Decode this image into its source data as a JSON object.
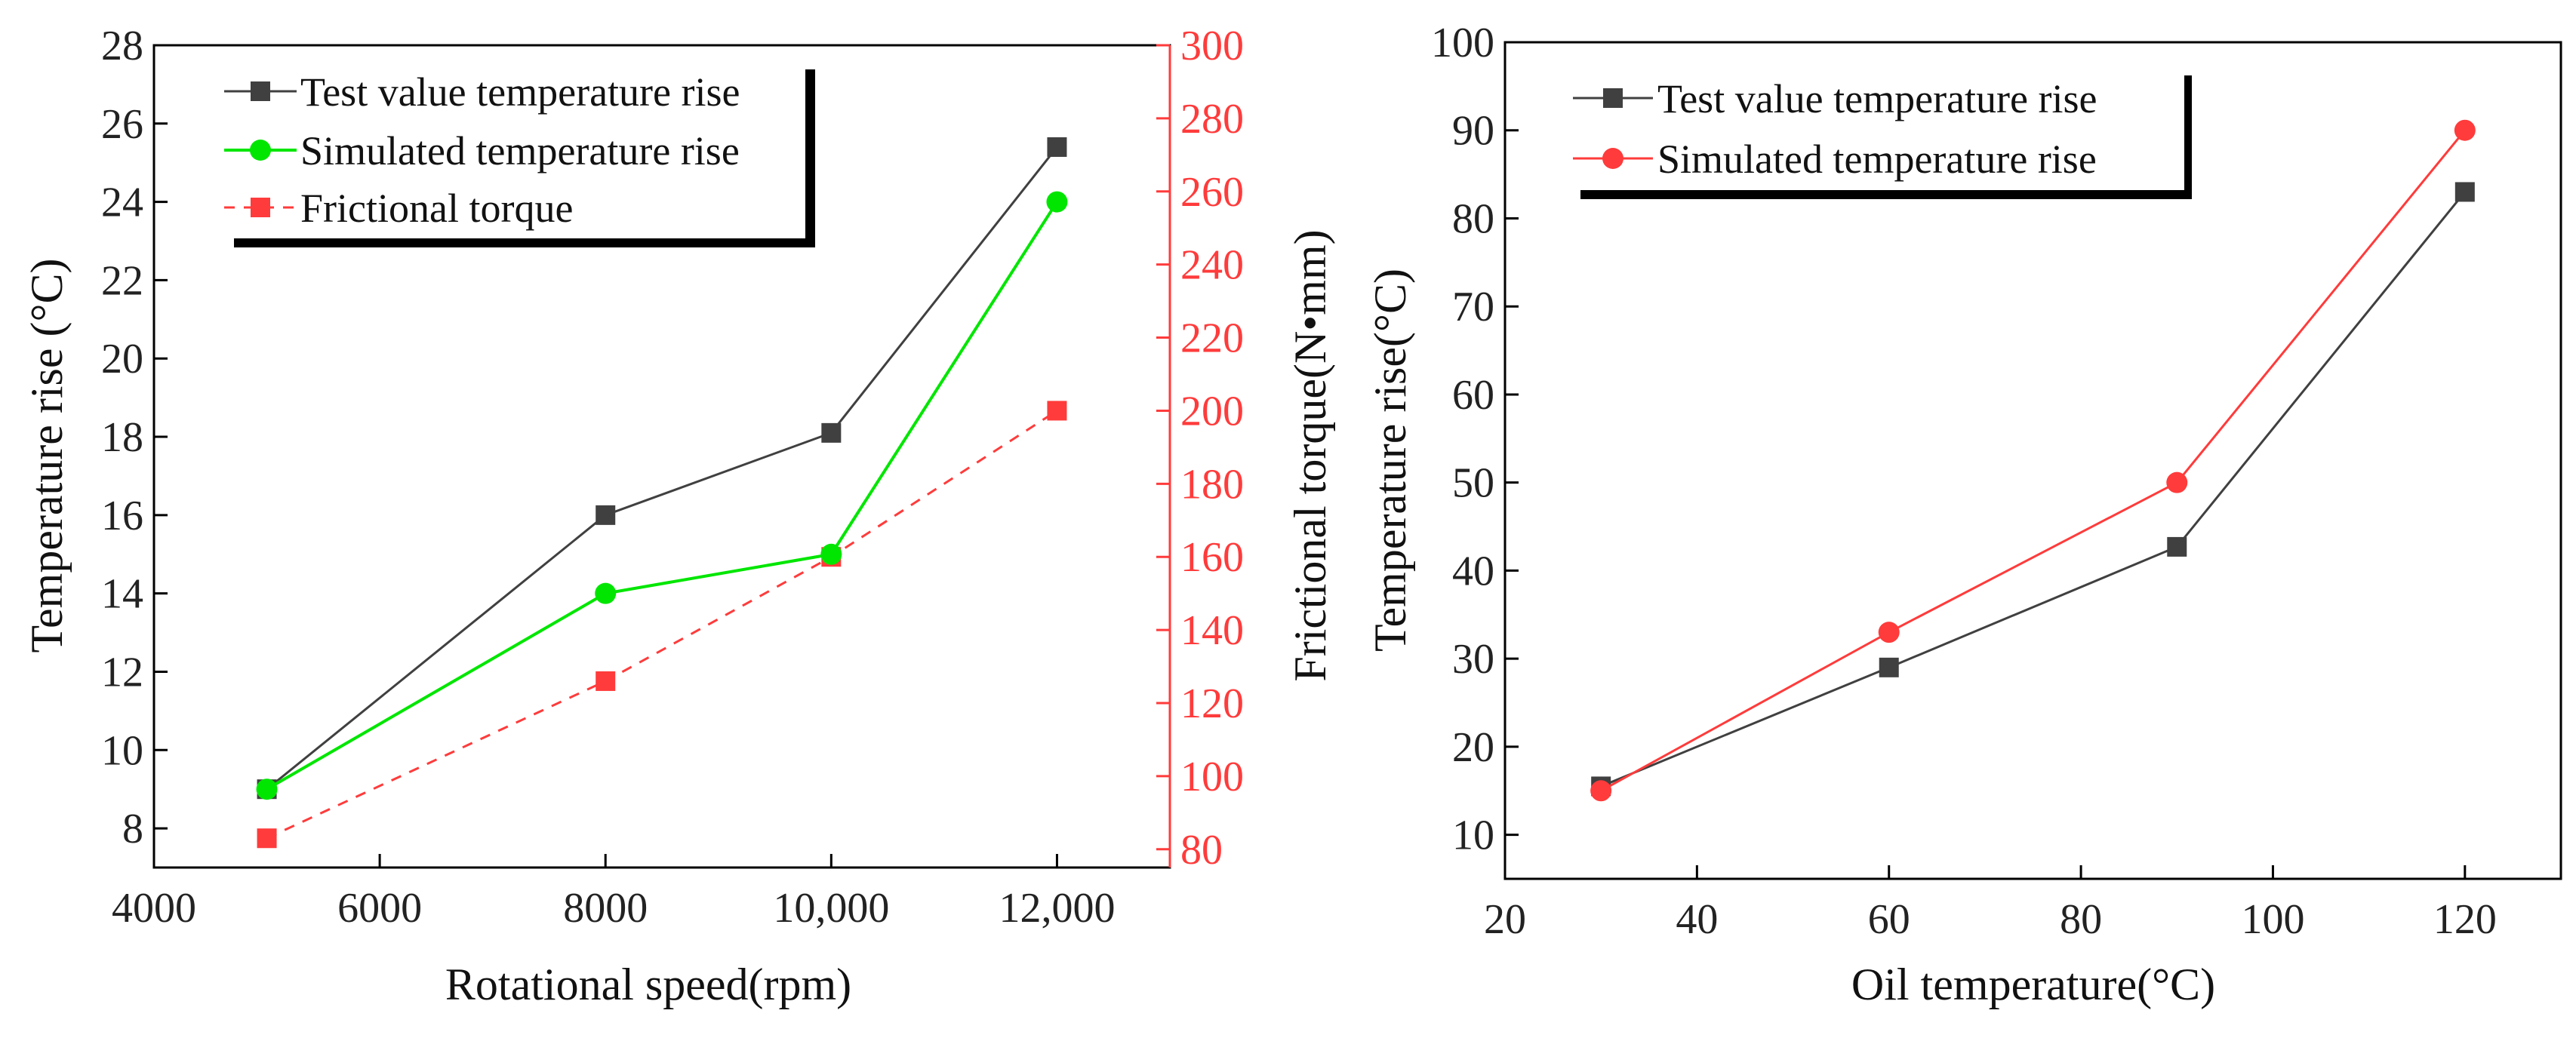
{
  "chart_data": [
    {
      "type": "line",
      "title": "",
      "xlabel": "Rotational speed(rpm)",
      "ylabel": "Temperature rise (°C)",
      "ylabel_right": "Frictional torque(N•mm)",
      "xlim": [
        4000,
        13000
      ],
      "xticks": [
        4000,
        6000,
        8000,
        10000,
        12000
      ],
      "xtick_labels": [
        "4000",
        "6000",
        "8000",
        "10,000",
        "12,000"
      ],
      "ylim": [
        7,
        28
      ],
      "yticks": [
        8,
        10,
        12,
        14,
        16,
        18,
        20,
        22,
        24,
        26,
        28
      ],
      "ytick_labels": [
        "8",
        "10",
        "12",
        "14",
        "16",
        "18",
        "20",
        "22",
        "24",
        "26",
        "28"
      ],
      "ylim_right": [
        75,
        300
      ],
      "yticks_right": [
        80,
        100,
        120,
        140,
        160,
        180,
        200,
        220,
        240,
        260,
        280,
        300
      ],
      "ytick_labels_right": [
        "80",
        "100",
        "120",
        "140",
        "160",
        "180",
        "200",
        "220",
        "240",
        "260",
        "280",
        "300"
      ],
      "legend_position": "top-left",
      "series": [
        {
          "name": "Test value temperature rise",
          "color": "#404040",
          "marker": "square",
          "line": "solid",
          "axis": "left",
          "x": [
            5000,
            8000,
            10000,
            12000
          ],
          "values": [
            9.0,
            16.0,
            18.1,
            25.4
          ]
        },
        {
          "name": "Simulated temperature rise",
          "color": "#00e600",
          "marker": "circle",
          "line": "solid",
          "axis": "left",
          "x": [
            5000,
            8000,
            10000,
            12000
          ],
          "values": [
            9.0,
            14.0,
            15.0,
            24.0
          ]
        },
        {
          "name": "Frictional torque",
          "color": "#ff3b3b",
          "marker": "square",
          "line": "dashed",
          "axis": "right",
          "x": [
            5000,
            8000,
            10000,
            12000
          ],
          "values": [
            83,
            126,
            160,
            200
          ]
        }
      ]
    },
    {
      "type": "line",
      "title": "",
      "xlabel": "Oil temperature(°C)",
      "ylabel": "Temperature rise(°C)",
      "xlim": [
        20,
        130
      ],
      "xticks": [
        20,
        40,
        60,
        80,
        100,
        120
      ],
      "xtick_labels": [
        "20",
        "40",
        "60",
        "80",
        "100",
        "120"
      ],
      "ylim": [
        5,
        100
      ],
      "yticks": [
        10,
        20,
        30,
        40,
        50,
        60,
        70,
        80,
        90,
        100
      ],
      "ytick_labels": [
        "10",
        "20",
        "30",
        "40",
        "50",
        "60",
        "70",
        "80",
        "90",
        "100"
      ],
      "legend_position": "top-left",
      "series": [
        {
          "name": "Test value temperature rise",
          "color": "#404040",
          "marker": "square",
          "line": "solid",
          "x": [
            30,
            60,
            90,
            120
          ],
          "values": [
            15.5,
            29.0,
            42.7,
            83.0
          ]
        },
        {
          "name": "Simulated temperature rise",
          "color": "#ff3b3b",
          "marker": "circle",
          "line": "solid",
          "x": [
            30,
            60,
            90,
            120
          ],
          "values": [
            15.0,
            33.0,
            50.0,
            90.0
          ]
        }
      ]
    }
  ]
}
